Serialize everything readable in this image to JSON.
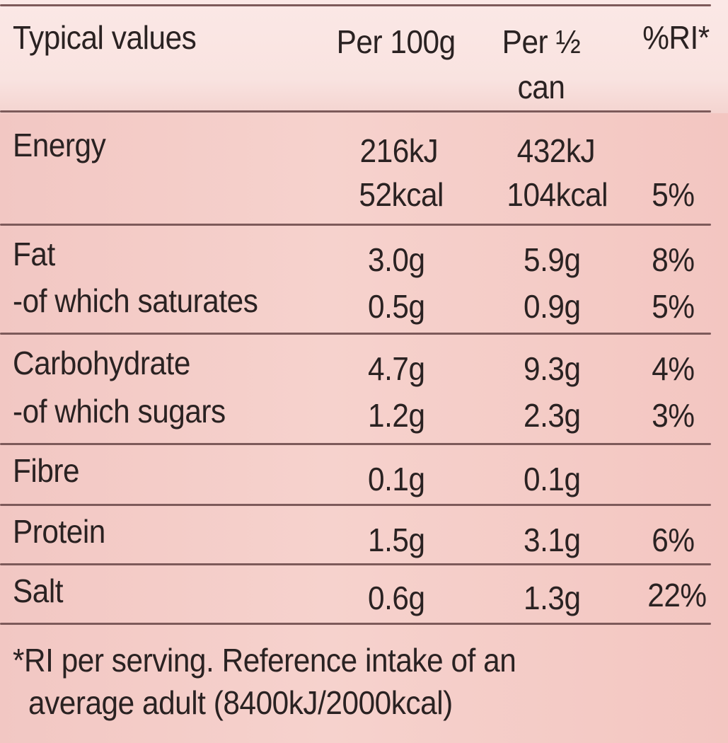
{
  "header": {
    "col_label": "Typical values",
    "col_per100": "Per 100g",
    "col_perhalf_line1": "Per ½",
    "col_perhalf_line2": "can",
    "col_ri": "%RI*"
  },
  "rows": [
    {
      "label": "Energy",
      "per100_kj": "216kJ",
      "per100_kcal": "52kcal",
      "half_kj": "432kJ",
      "half_kcal": "104kcal",
      "ri": "5%"
    },
    {
      "label": "Fat",
      "per100": "3.0g",
      "half": "5.9g",
      "ri": "8%"
    },
    {
      "label": "-of which saturates",
      "per100": "0.5g",
      "half": "0.9g",
      "ri": "5%"
    },
    {
      "label": "Carbohydrate",
      "per100": "4.7g",
      "half": "9.3g",
      "ri": "4%"
    },
    {
      "label": "-of which sugars",
      "per100": "1.2g",
      "half": "2.3g",
      "ri": "3%"
    },
    {
      "label": "Fibre",
      "per100": "0.1g",
      "half": "0.1g",
      "ri": ""
    },
    {
      "label": "Protein",
      "per100": "1.5g",
      "half": "3.1g",
      "ri": "6%"
    },
    {
      "label": "Salt",
      "per100": "0.6g",
      "half": "1.3g",
      "ri": "22%"
    }
  ],
  "footnote": {
    "line1": "*RI per serving. Reference intake of an",
    "line2": "average adult (8400kJ/2000kcal)"
  },
  "colors": {
    "rule": "#7d5a5a",
    "text": "#2a2222",
    "background": "#f4cbc6",
    "header_background": "#fae6e3"
  }
}
